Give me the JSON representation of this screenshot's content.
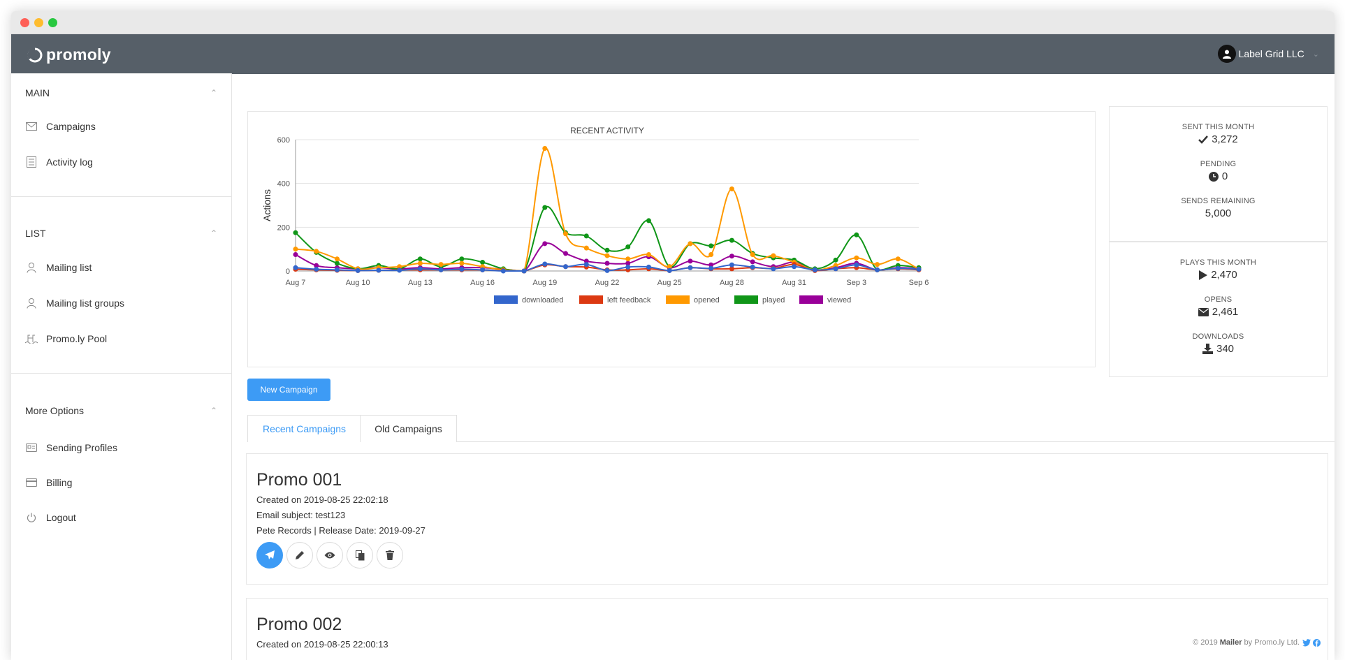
{
  "app": {
    "brand": "promoly",
    "account_name": "Label Grid LLC"
  },
  "sidebar": {
    "sections": [
      {
        "title": "MAIN",
        "items": [
          "Campaigns",
          "Activity log"
        ]
      },
      {
        "title": "LIST",
        "items": [
          "Mailing list",
          "Mailing list groups",
          "Promo.ly Pool"
        ]
      },
      {
        "title": "More Options",
        "items": [
          "Sending Profiles",
          "Billing",
          "Logout"
        ]
      }
    ],
    "icons": {
      "campaigns": "envelope-icon",
      "activity": "log-icon",
      "mailing_list": "user-icon",
      "mailing_list_groups": "user-icon",
      "pool": "pool-icon",
      "sending_profiles": "id-card-icon",
      "billing": "credit-card-icon",
      "logout": "power-icon"
    }
  },
  "stats": {
    "sent_label": "SENT THIS MONTH",
    "sent_value": "3,272",
    "pending_label": "PENDING",
    "pending_value": "0",
    "remaining_label": "SENDS REMAINING",
    "remaining_value": "5,000",
    "plays_label": "PLAYS THIS MONTH",
    "plays_value": "2,470",
    "opens_label": "OPENS",
    "opens_value": "2,461",
    "downloads_label": "DOWNLOADS",
    "downloads_value": "340"
  },
  "buttons": {
    "new_campaign": "New Campaign"
  },
  "tabs": [
    "Recent Campaigns",
    "Old Campaigns"
  ],
  "campaigns": [
    {
      "name": "Promo 001",
      "created": "Created on 2019-08-25 22:02:18",
      "subject": "Email subject: test123",
      "release": "Pete Records | Release Date: 2019-09-27"
    },
    {
      "name": "Promo 002",
      "created": "Created on 2019-08-25 22:00:13"
    }
  ],
  "footer": {
    "prefix": "© 2019",
    "product": "Mailer",
    "suffix": "by Promo.ly Ltd."
  },
  "colors": {
    "accent": "#3d9bf5",
    "nav": "#565f68"
  },
  "chart_data": {
    "type": "line",
    "title": "RECENT ACTIVITY",
    "xlabel": "",
    "ylabel": "Actions",
    "ylim": [
      0,
      600
    ],
    "yticks": [
      "0",
      "200",
      "400",
      "600"
    ],
    "categories": [
      "Aug 7",
      "Aug 8",
      "Aug 9",
      "Aug 10",
      "Aug 11",
      "Aug 12",
      "Aug 13",
      "Aug 14",
      "Aug 15",
      "Aug 16",
      "Aug 17",
      "Aug 18",
      "Aug 19",
      "Aug 20",
      "Aug 21",
      "Aug 22",
      "Aug 23",
      "Aug 24",
      "Aug 25",
      "Aug 26",
      "Aug 27",
      "Aug 28",
      "Aug 29",
      "Aug 30",
      "Aug 31",
      "Sep 1",
      "Sep 2",
      "Sep 3",
      "Sep 4",
      "Sep 5",
      "Sep 6"
    ],
    "tick_labels": [
      "Aug 7",
      "Aug 10",
      "Aug 13",
      "Aug 16",
      "Aug 19",
      "Aug 22",
      "Aug 25",
      "Aug 28",
      "Aug 31",
      "Sep 3",
      "Sep 6"
    ],
    "grid": true,
    "legend": "bottom",
    "series": [
      {
        "name": "downloaded",
        "color": "#3366cc",
        "values": [
          15,
          8,
          5,
          2,
          3,
          3,
          10,
          5,
          8,
          5,
          0,
          0,
          32,
          20,
          30,
          2,
          18,
          18,
          2,
          15,
          12,
          28,
          18,
          10,
          20,
          5,
          10,
          28,
          5,
          12,
          8
        ]
      },
      {
        "name": "left feedback",
        "color": "#dc3912",
        "values": [
          8,
          5,
          3,
          2,
          3,
          5,
          5,
          5,
          5,
          5,
          2,
          0,
          28,
          20,
          18,
          5,
          5,
          10,
          2,
          15,
          10,
          10,
          15,
          12,
          30,
          2,
          10,
          15,
          5,
          10,
          5
        ]
      },
      {
        "name": "opened",
        "color": "#ff9900",
        "values": [
          100,
          90,
          55,
          10,
          15,
          20,
          35,
          30,
          35,
          20,
          5,
          0,
          560,
          170,
          105,
          70,
          55,
          75,
          20,
          125,
          75,
          375,
          75,
          70,
          40,
          5,
          25,
          60,
          30,
          55,
          8
        ]
      },
      {
        "name": "played",
        "color": "#109618",
        "values": [
          175,
          85,
          35,
          10,
          25,
          10,
          55,
          20,
          55,
          40,
          10,
          0,
          290,
          175,
          160,
          95,
          110,
          230,
          20,
          125,
          115,
          140,
          80,
          60,
          50,
          10,
          50,
          165,
          5,
          25,
          15
        ]
      },
      {
        "name": "viewed",
        "color": "#990099",
        "values": [
          75,
          25,
          15,
          10,
          15,
          10,
          15,
          10,
          15,
          15,
          8,
          0,
          125,
          80,
          45,
          35,
          35,
          65,
          15,
          45,
          28,
          68,
          42,
          20,
          40,
          5,
          15,
          35,
          5,
          15,
          10
        ]
      }
    ]
  }
}
